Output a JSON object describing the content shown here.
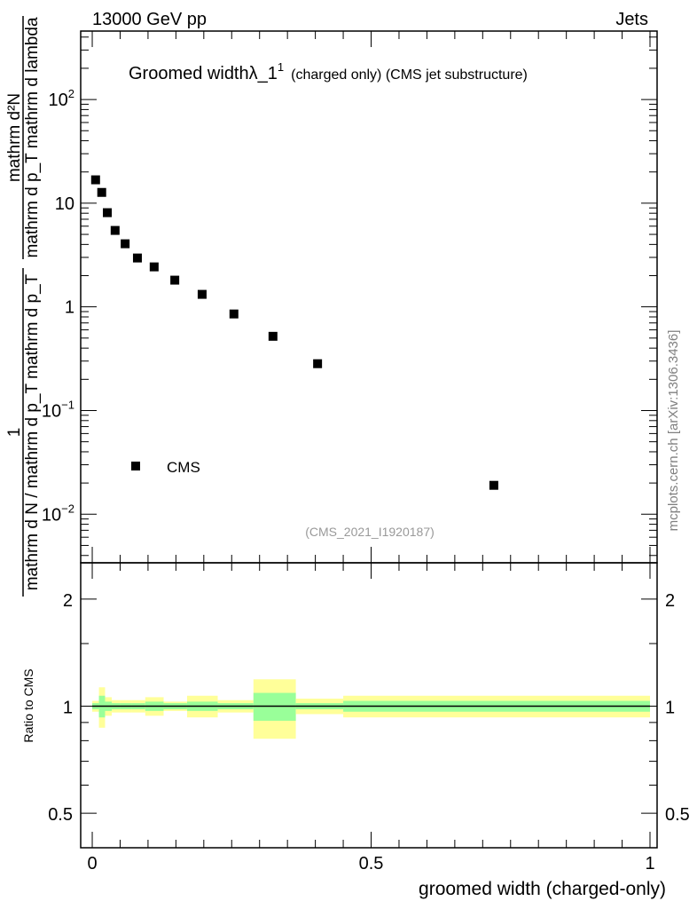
{
  "header": {
    "left": "13000 GeV pp",
    "right": "Jets"
  },
  "side_label": "mcplots.cern.ch [arXiv:1306.3436]",
  "colors": {
    "marker": "#000000",
    "band_outer": "#ffff99",
    "band_inner": "#99ff99",
    "side_text": "#808080"
  },
  "chart_data": [
    {
      "type": "scatter",
      "title_main": "Groomed width",
      "title_symbol": "λ_1",
      "title_sup": "1",
      "title_rest": "(charged only) (CMS jet substructure)",
      "analysis_id": "(CMS_2021_I1920187)",
      "ylabel_outer_num": "1",
      "ylabel_outer_den": "mathrm d N / mathrm d p_T mathrm d p_T",
      "ylabel_inner_num": "mathrm d²N",
      "ylabel_inner_den": "mathrm d p_T mathrm d lambda",
      "yscale": "log",
      "xlim": [
        -0.0207,
        1.0127
      ],
      "ylim": [
        0.0034,
        457
      ],
      "yticks": [
        {
          "v": 100,
          "label": "10",
          "exp": "2"
        },
        {
          "v": 10,
          "label": "10",
          "exp": ""
        },
        {
          "v": 1,
          "label": "1",
          "exp": ""
        },
        {
          "v": 0.1,
          "label": "10",
          "exp": "−1"
        },
        {
          "v": 0.01,
          "label": "10",
          "exp": "−2"
        }
      ],
      "legend": {
        "position": "bottom-left",
        "entries": [
          "CMS"
        ]
      },
      "series": [
        {
          "name": "CMS",
          "x": [
            0.006,
            0.017,
            0.027,
            0.041,
            0.059,
            0.081,
            0.111,
            0.148,
            0.197,
            0.254,
            0.324,
            0.404,
            0.72
          ],
          "y": [
            16.8,
            12.7,
            8.1,
            5.46,
            4.06,
            2.96,
            2.43,
            1.81,
            1.32,
            0.854,
            0.52,
            0.283,
            0.019
          ]
        }
      ]
    },
    {
      "type": "area",
      "ylabel": "Ratio to CMS",
      "xlabel": "groomed width (charged-only)",
      "yscale": "log",
      "xlim": [
        -0.0207,
        1.0127
      ],
      "ylim": [
        0.4,
        2.53
      ],
      "yticks": [
        {
          "v": 2,
          "label": "2"
        },
        {
          "v": 1,
          "label": "1"
        },
        {
          "v": 0.5,
          "label": "0.5"
        }
      ],
      "xticks": [
        {
          "v": 0,
          "label": "0"
        },
        {
          "v": 0.5,
          "label": "0.5"
        },
        {
          "v": 1,
          "label": "1"
        }
      ],
      "bin_edges": [
        0,
        0.012,
        0.023,
        0.035,
        0.05,
        0.07,
        0.095,
        0.128,
        0.17,
        0.225,
        0.289,
        0.365,
        0.45,
        1.0
      ],
      "band_outer_err": [
        0.035,
        0.13,
        0.06,
        0.04,
        0.04,
        0.04,
        0.06,
        0.03,
        0.07,
        0.04,
        0.19,
        0.05,
        0.07
      ],
      "band_inner_err": [
        0.02,
        0.07,
        0.03,
        0.02,
        0.02,
        0.02,
        0.03,
        0.02,
        0.03,
        0.02,
        0.09,
        0.02,
        0.035
      ],
      "reference": 1
    }
  ]
}
